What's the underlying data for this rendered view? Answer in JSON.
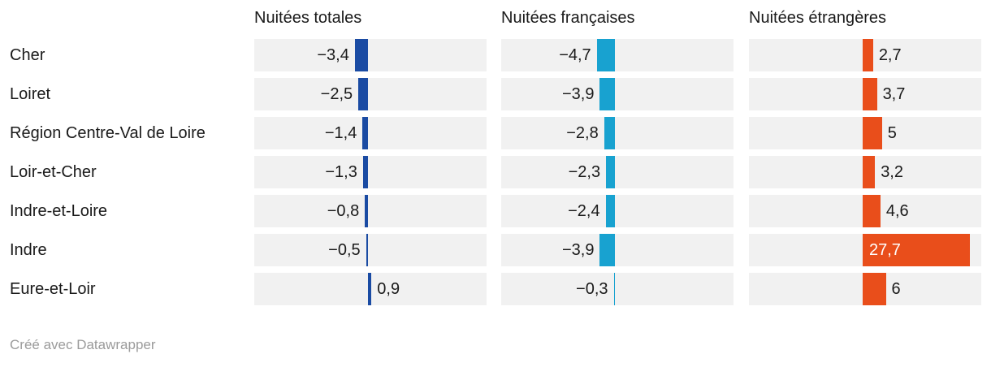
{
  "chart_data": {
    "type": "bar",
    "orientation": "horizontal",
    "title": "",
    "categories": [
      "Cher",
      "Loiret",
      "Région Centre-Val de Loire",
      "Loir-et-Cher",
      "Indre-et-Loire",
      "Indre",
      "Eure-et-Loir"
    ],
    "series": [
      {
        "name": "Nuitées totales",
        "color": "#1a4ba3",
        "values": [
          -3.4,
          -2.5,
          -1.4,
          -1.3,
          -0.8,
          -0.5,
          0.9
        ],
        "labels": [
          "−3,4",
          "−2,5",
          "−1,4",
          "−1,3",
          "−0,8",
          "−0,5",
          "0,9"
        ]
      },
      {
        "name": "Nuitées françaises",
        "color": "#18a2d0",
        "values": [
          -4.7,
          -3.9,
          -2.8,
          -2.3,
          -2.4,
          -3.9,
          -0.3
        ],
        "labels": [
          "−4,7",
          "−3,9",
          "−2,8",
          "−2,3",
          "−2,4",
          "−3,9",
          "−0,3"
        ]
      },
      {
        "name": "Nuitées étrangères",
        "color": "#e94e1b",
        "values": [
          2.7,
          3.7,
          5,
          3.2,
          4.6,
          27.7,
          6
        ],
        "labels": [
          "2,7",
          "3,7",
          "5",
          "3,2",
          "4,6",
          "27,7",
          "6"
        ]
      }
    ],
    "value_axis_range": [
      -29.5,
      30.7
    ],
    "zero_baseline": true,
    "grid": false,
    "legend_position": "column-headers",
    "track_color": "#f1f1f1",
    "inside_label_values": [
      27.7
    ]
  },
  "footer": {
    "credit": "Créé avec Datawrapper"
  }
}
